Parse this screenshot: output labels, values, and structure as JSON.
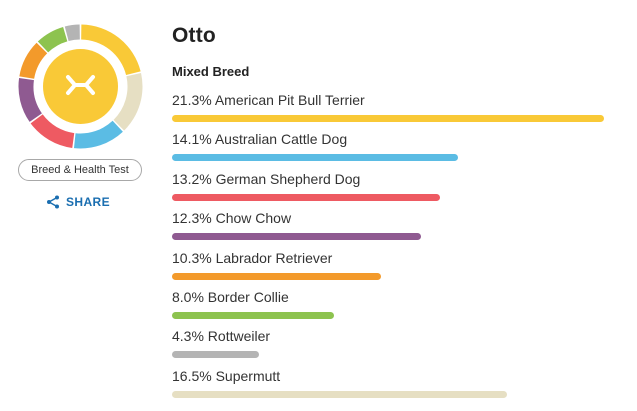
{
  "profile": {
    "name": "Otto",
    "test_label": "Breed & Health Test",
    "share_label": "SHARE",
    "center_icon": "dog-bone-icon"
  },
  "ancestry": {
    "heading": "Mixed Breed",
    "max_percent": 21.3,
    "breeds": [
      {
        "percent": 21.3,
        "text": "21.3% American Pit Bull Terrier",
        "color": "#f9c937"
      },
      {
        "percent": 14.1,
        "text": "14.1% Australian Cattle Dog",
        "color": "#5bbce4"
      },
      {
        "percent": 13.2,
        "text": "13.2% German Shepherd Dog",
        "color": "#ee5a62"
      },
      {
        "percent": 12.3,
        "text": "12.3% Chow Chow",
        "color": "#8f5a91"
      },
      {
        "percent": 10.3,
        "text": "10.3% Labrador Retriever",
        "color": "#f39a2b"
      },
      {
        "percent": 8.0,
        "text": "8.0% Border Collie",
        "color": "#8dc34f"
      },
      {
        "percent": 4.3,
        "text": "4.3% Rottweiler",
        "color": "#b4b4b4"
      },
      {
        "percent": 16.5,
        "text": "16.5% Supermutt",
        "color": "#e6dfc3"
      }
    ]
  },
  "donut_order": [
    0,
    7,
    1,
    2,
    3,
    4,
    5,
    6
  ],
  "colors": {
    "accent": "#f9c937",
    "share_link": "#1a6eb0"
  }
}
